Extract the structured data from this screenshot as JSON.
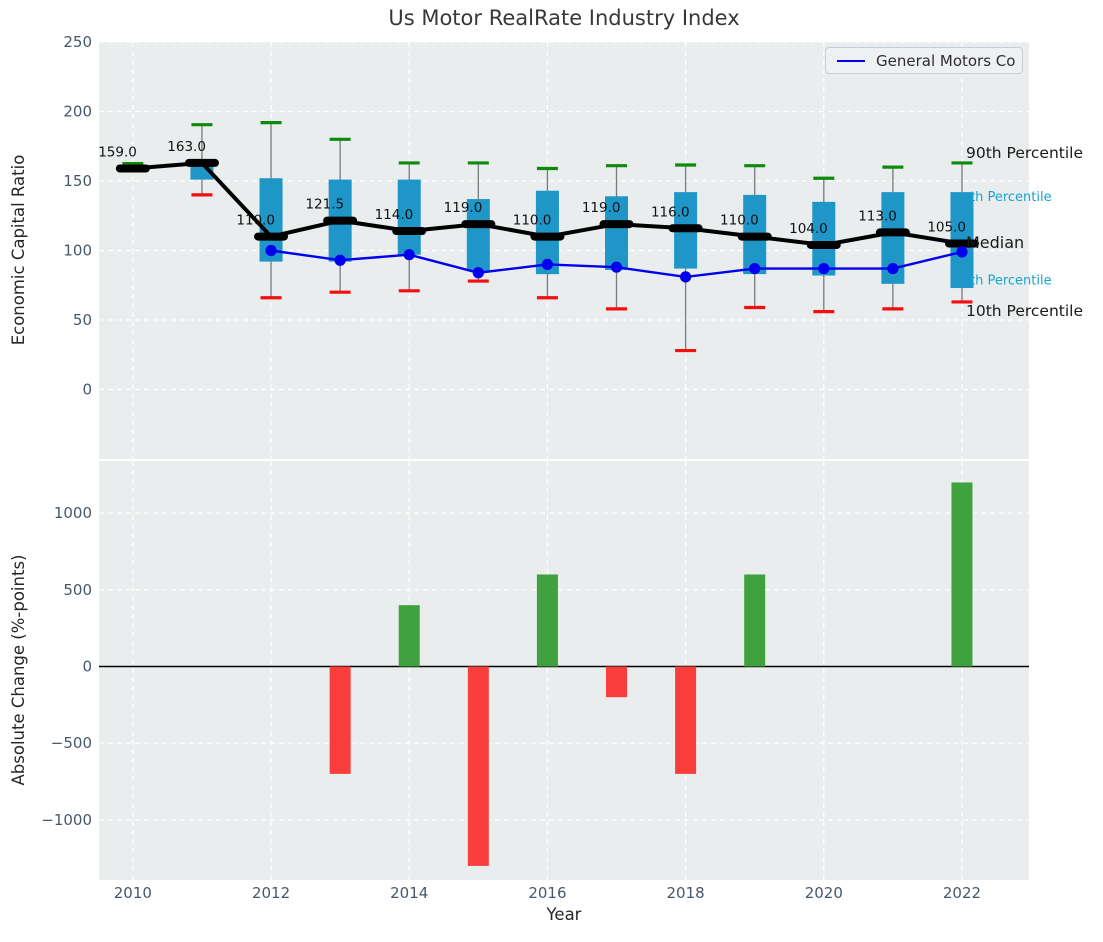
{
  "title": "Us Motor RealRate Industry Index",
  "legend": {
    "label": "General Motors Co"
  },
  "colors": {
    "box": "#1e96c8",
    "whisker": "#7a7a7a",
    "cap_high": "#0c8a0c",
    "cap_low": "#f60d0d",
    "median": "#000000",
    "company_line": "#0000ee",
    "bar_positive": "#3fa23f",
    "bar_negative": "#f93d3b",
    "plot_bg": "#e9edee",
    "grid": "#ffffff",
    "tick": "#46586b",
    "zero_line": "#000000",
    "label_blue": "#19a3d1",
    "label_black": "#1a1a1a"
  },
  "chart_data": [
    {
      "type": "box-line",
      "title": "Us Motor RealRate Industry Index",
      "ylabel": "Economic Capital Ratio",
      "legend_position": "upper right",
      "grid": true,
      "xlim": [
        2009.51,
        2022.97
      ],
      "ylim": [
        -50,
        250
      ],
      "yticks": [
        0,
        50,
        100,
        150,
        200,
        250
      ],
      "years": [
        2010,
        2011,
        2012,
        2013,
        2014,
        2015,
        2016,
        2017,
        2018,
        2019,
        2020,
        2021,
        2022
      ],
      "median": [
        159.0,
        163.0,
        110.0,
        121.5,
        114.0,
        119.0,
        110.0,
        119.0,
        116.0,
        110.0,
        104.0,
        113.0,
        105.0
      ],
      "median_labels": [
        "159.0",
        "163.0",
        "110.0",
        "121.5",
        "114.0",
        "119.0",
        "110.0",
        "119.0",
        "116.0",
        "110.0",
        "104.0",
        "113.0",
        "105.0"
      ],
      "q75": [
        160.5,
        164.5,
        152,
        151,
        151,
        137,
        143,
        139,
        142,
        140,
        135,
        142,
        142
      ],
      "q25": [
        157.5,
        151,
        92,
        92,
        97,
        85,
        83,
        86,
        87,
        83,
        82,
        76,
        73
      ],
      "p90": [
        162.5,
        190.5,
        192,
        180,
        163,
        163,
        159,
        161,
        161.5,
        161,
        152,
        160,
        163
      ],
      "p10": [
        158,
        140,
        66,
        70,
        71,
        78,
        66,
        58,
        28,
        59,
        56,
        58,
        63
      ],
      "company": {
        "name": "General Motors Co",
        "years": [
          2012,
          2013,
          2014,
          2015,
          2016,
          2017,
          2018,
          2019,
          2020,
          2021,
          2022
        ],
        "values": [
          100,
          93,
          97,
          84,
          90,
          88,
          81,
          87,
          87,
          87,
          99
        ]
      },
      "right_labels": [
        {
          "text": "90th Percentile",
          "color": "#1a1a1a",
          "size": 15.5,
          "value": 170.5,
          "x": 966
        },
        {
          "text": "th Percentile",
          "color": "#19a3d1",
          "size": 13,
          "value": 139,
          "x": 970
        },
        {
          "text": "Median",
          "color": "#1a1a1a",
          "size": 16,
          "value": 106,
          "x": 966
        },
        {
          "text": "th Percentile",
          "color": "#19a3d1",
          "size": 13,
          "value": 79,
          "x": 970
        },
        {
          "text": "10th Percentile",
          "color": "#1a1a1a",
          "size": 15.5,
          "value": 57,
          "x": 966
        }
      ]
    },
    {
      "type": "bar",
      "ylabel": "Absolute Change (%-points)",
      "xlabel": "Year",
      "grid": true,
      "xlim": [
        2009.51,
        2022.97
      ],
      "ylim": [
        -1392,
        1340
      ],
      "yticks": [
        -1000,
        -500,
        0,
        500,
        1000
      ],
      "ytick_labels": [
        "−1000",
        "−500",
        "0",
        "500",
        "1000"
      ],
      "xticks": [
        2010,
        2012,
        2014,
        2016,
        2018,
        2020,
        2022
      ],
      "categories": [
        2010,
        2011,
        2012,
        2013,
        2014,
        2015,
        2016,
        2017,
        2018,
        2019,
        2020,
        2021,
        2022
      ],
      "values": [
        null,
        null,
        null,
        -700,
        400,
        -1300,
        600,
        -200,
        -700,
        600,
        null,
        null,
        1200
      ]
    }
  ]
}
